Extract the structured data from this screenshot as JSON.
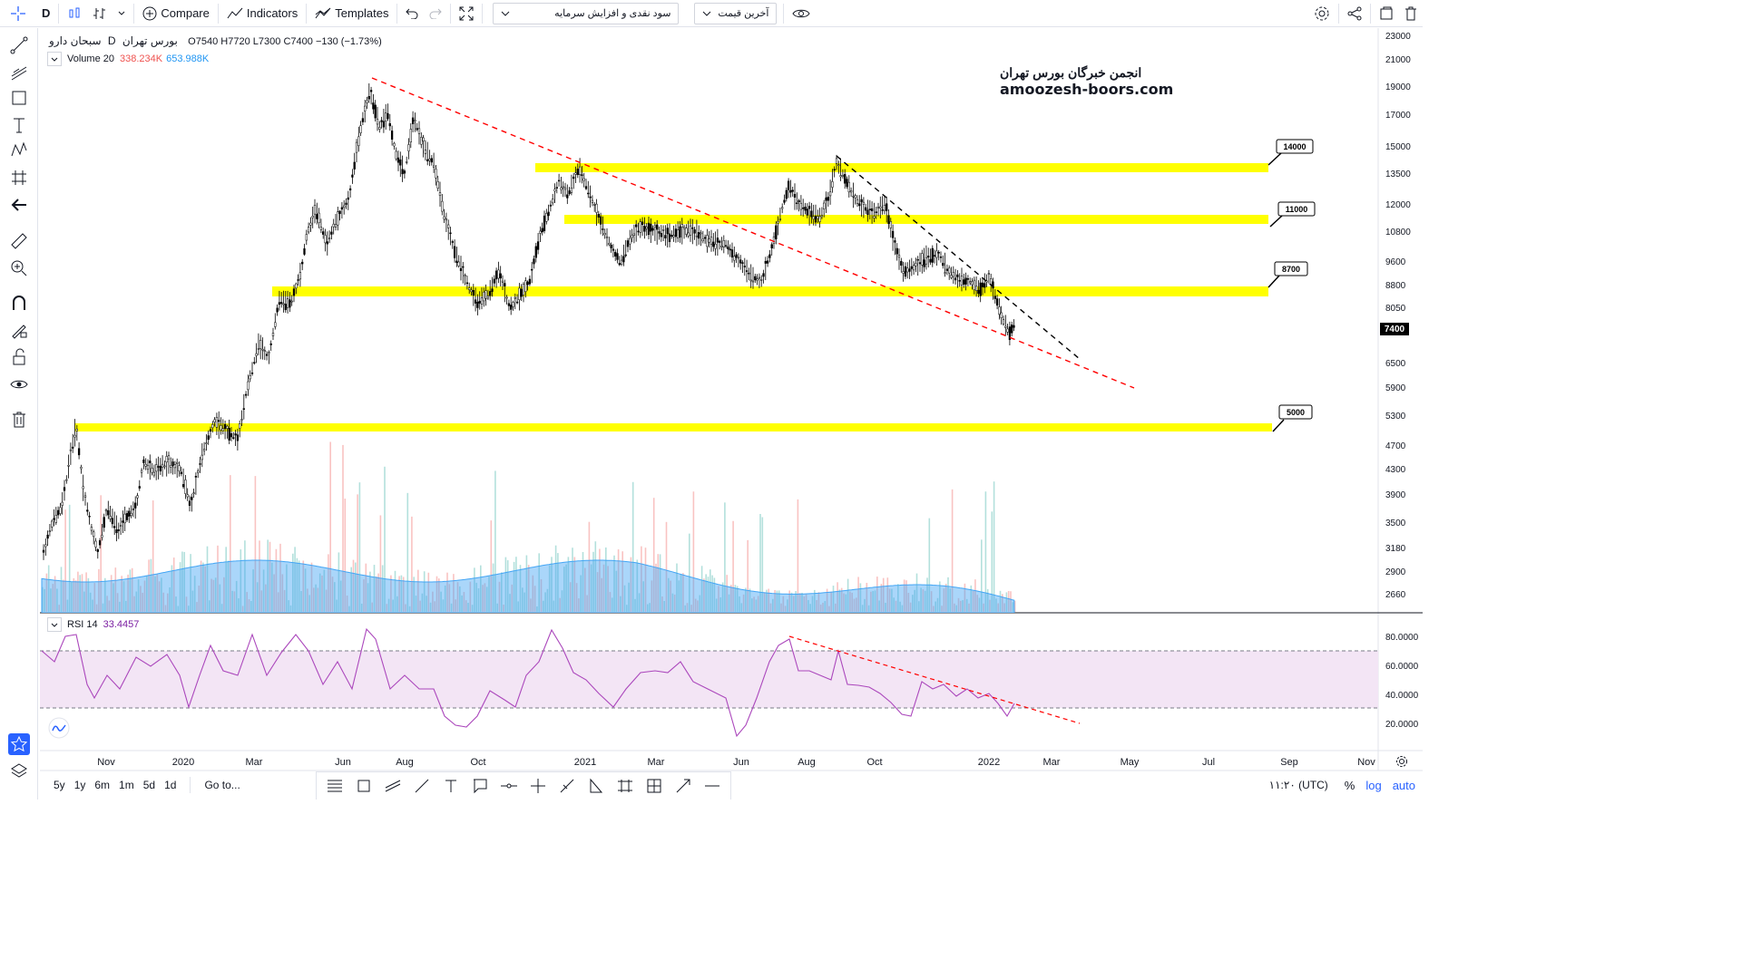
{
  "toolbar": {
    "interval": "D",
    "compare_label": "Compare",
    "indicators_label": "Indicators",
    "templates_label": "Templates",
    "study_select_value": "سود نقدی و افزایش سرمایه",
    "price_select_value": "آخرین قیمت"
  },
  "legend": {
    "symbol": "سبحان دارو",
    "interval": "D",
    "exchange": "بورس تهران",
    "open_label": "O",
    "open": "7540",
    "high_label": "H",
    "high": "7720",
    "low_label": "L",
    "low": "7300",
    "close_label": "C",
    "close": "7400",
    "change": "−130 (−1.73%)",
    "volume_label": "Volume 20",
    "volume_value_1": "338.234K",
    "volume_value_2": "653.988K"
  },
  "watermark": {
    "line1": "انجمن خبرگان بورس تهران",
    "line2": "amoozesh-boors.com"
  },
  "price_axis": [
    "23000",
    "21000",
    "19000",
    "17000",
    "15000",
    "13500",
    "12000",
    "10800",
    "9600",
    "8800",
    "8050",
    "7400",
    "6500",
    "5900",
    "5300",
    "4700",
    "4300",
    "3900",
    "3500",
    "3180",
    "2900",
    "2660"
  ],
  "last_price": "7400",
  "levels": [
    {
      "label": "14000"
    },
    {
      "label": "11000"
    },
    {
      "label": "8700"
    },
    {
      "label": "5000"
    }
  ],
  "rsi": {
    "label": "RSI 14",
    "value": "33.4457",
    "axis": [
      "80.0000",
      "60.0000",
      "40.0000",
      "20.0000"
    ]
  },
  "time_axis": [
    "Nov",
    "2020",
    "Mar",
    "Jun",
    "Aug",
    "Oct",
    "2021",
    "Mar",
    "Jun",
    "Aug",
    "Oct",
    "2022",
    "Mar",
    "May",
    "Jul",
    "Sep",
    "Nov"
  ],
  "bottom": {
    "ranges": [
      "5y",
      "1y",
      "6m",
      "1m",
      "5d",
      "1d"
    ],
    "goto_label": "Go to...",
    "time_display": "۱۱:۲۰ (UTC)",
    "percent_label": "%",
    "log_label": "log",
    "auto_label": "auto"
  },
  "colors": {
    "zone": "#ffff00",
    "trendline_red": "#ff0000",
    "trendline_black": "#000000",
    "rsi_line": "#9c27b0",
    "rsi_band": "#f3e5f5",
    "volume_area": "#90caf9",
    "accent": "#2962ff"
  }
}
